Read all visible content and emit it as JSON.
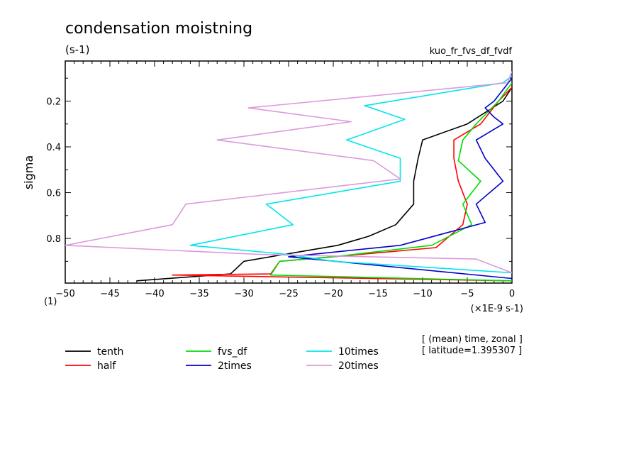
{
  "chart_data": {
    "type": "line",
    "title": "condensation moistning",
    "units_label": "(s-1)",
    "run_label": "kuo_fr_fvs_df_fvdf",
    "ylabel": "sigma",
    "xunit_label": "(×1E-9 s-1)",
    "corner_label": "(1)",
    "info_lines": [
      "[ (mean) time, zonal ]",
      "[ latitude=1.395307 ]"
    ],
    "xlim": [
      -50,
      0
    ],
    "ylim": [
      0.025,
      0.995
    ],
    "y_inverted": true,
    "grid": false,
    "legend_position": "bottom",
    "xticks": [
      -50,
      -45,
      -40,
      -35,
      -30,
      -25,
      -20,
      -15,
      -10,
      -5,
      0
    ],
    "xtick_labels": [
      "−50",
      "−45",
      "−40",
      "−35",
      "−30",
      "−25",
      "−20",
      "−15",
      "−10",
      "−5",
      "0"
    ],
    "yticks": [
      0.2,
      0.4,
      0.6,
      0.8
    ],
    "ytick_labels": [
      "0.2",
      "0.4",
      "0.6",
      "0.8"
    ],
    "series": [
      {
        "name": "tenth",
        "color": "#000000",
        "points": [
          [
            0,
            0.14
          ],
          [
            -1,
            0.2
          ],
          [
            -5,
            0.3
          ],
          [
            -10,
            0.37
          ],
          [
            -10.5,
            0.45
          ],
          [
            -11,
            0.55
          ],
          [
            -11,
            0.65
          ],
          [
            -13,
            0.74
          ],
          [
            -16,
            0.79
          ],
          [
            -19.5,
            0.83
          ],
          [
            -24,
            0.86
          ],
          [
            -30,
            0.9
          ],
          [
            -31.5,
            0.955
          ],
          [
            -42,
            0.985
          ]
        ]
      },
      {
        "name": "half",
        "color": "#ff0000",
        "points": [
          [
            0,
            0.14
          ],
          [
            -1.5,
            0.2
          ],
          [
            -3.5,
            0.3
          ],
          [
            -6.5,
            0.37
          ],
          [
            -6.5,
            0.45
          ],
          [
            -6,
            0.55
          ],
          [
            -5,
            0.65
          ],
          [
            -5.5,
            0.74
          ],
          [
            -8.5,
            0.84
          ],
          [
            -20,
            0.88
          ],
          [
            -26,
            0.9
          ],
          [
            -27,
            0.955
          ],
          [
            -38,
            0.96
          ],
          [
            0,
            0.985
          ]
        ]
      },
      {
        "name": "fvs_df",
        "color": "#00dd00",
        "points": [
          [
            0,
            0.12
          ],
          [
            -1.5,
            0.2
          ],
          [
            -4,
            0.3
          ],
          [
            -5.5,
            0.37
          ],
          [
            -6,
            0.46
          ],
          [
            -3.5,
            0.55
          ],
          [
            -5.5,
            0.65
          ],
          [
            -4.5,
            0.74
          ],
          [
            -9,
            0.83
          ],
          [
            -20,
            0.88
          ],
          [
            -26,
            0.9
          ],
          [
            -27,
            0.96
          ],
          [
            0,
            0.985
          ]
        ]
      },
      {
        "name": "2times",
        "color": "#0000cc",
        "points": [
          [
            0,
            0.1
          ],
          [
            -2,
            0.2
          ],
          [
            -3,
            0.23
          ],
          [
            -2,
            0.27
          ],
          [
            -1,
            0.3
          ],
          [
            -4,
            0.37
          ],
          [
            -3,
            0.45
          ],
          [
            -1,
            0.55
          ],
          [
            -4,
            0.65
          ],
          [
            -3,
            0.73
          ],
          [
            -12.5,
            0.83
          ],
          [
            -20,
            0.86
          ],
          [
            -25,
            0.88
          ],
          [
            0,
            0.975
          ]
        ]
      },
      {
        "name": "10times",
        "color": "#00e5ee",
        "points": [
          [
            0,
            0.09
          ],
          [
            -1,
            0.12
          ],
          [
            -16.5,
            0.22
          ],
          [
            -12,
            0.28
          ],
          [
            -18.5,
            0.37
          ],
          [
            -12.5,
            0.45
          ],
          [
            -12.5,
            0.55
          ],
          [
            -27.5,
            0.65
          ],
          [
            -24.5,
            0.74
          ],
          [
            -36,
            0.83
          ],
          [
            -25,
            0.87
          ],
          [
            -20,
            0.9
          ],
          [
            0,
            0.95
          ]
        ]
      },
      {
        "name": "20times",
        "color": "#dd99dd",
        "points": [
          [
            0,
            0.07
          ],
          [
            -0.5,
            0.12
          ],
          [
            -29.5,
            0.23
          ],
          [
            -18,
            0.29
          ],
          [
            -33,
            0.37
          ],
          [
            -15.5,
            0.46
          ],
          [
            -12.5,
            0.54
          ],
          [
            -36.5,
            0.65
          ],
          [
            -38,
            0.74
          ],
          [
            -50,
            0.83
          ],
          [
            -28,
            0.87
          ],
          [
            -4,
            0.89
          ],
          [
            0,
            0.95
          ]
        ]
      }
    ]
  }
}
